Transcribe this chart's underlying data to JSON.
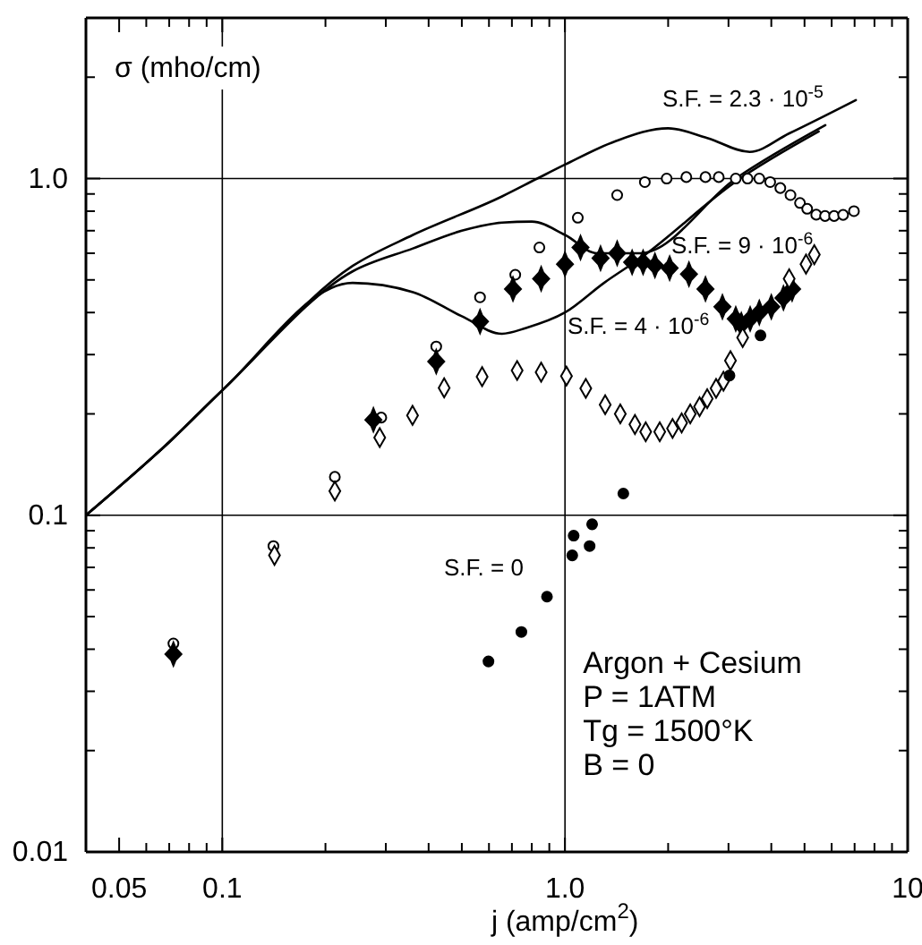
{
  "chart_data": {
    "type": "scatter",
    "xlabel": "j (amp/cm$^{2}$)",
    "ylabel": "σ (mho/cm)",
    "log": "xy",
    "grid": true,
    "xlim": [
      0.04,
      10
    ],
    "ylim": [
      0.01,
      3
    ],
    "xticks": [
      {
        "value": 0.04,
        "label": null
      },
      0.05,
      {
        "value": 0.06,
        "label": null
      },
      {
        "value": 0.07,
        "label": null
      },
      {
        "value": 0.08,
        "label": null
      },
      {
        "value": 0.09,
        "label": null
      },
      0.1,
      {
        "value": 0.2,
        "label": null
      },
      {
        "value": 0.3,
        "label": null
      },
      {
        "value": 0.4,
        "label": null
      },
      {
        "value": 0.5,
        "label": null
      },
      {
        "value": 0.6,
        "label": null
      },
      {
        "value": 0.7,
        "label": null
      },
      {
        "value": 0.8,
        "label": null
      },
      {
        "value": 0.9,
        "label": null
      },
      {
        "value": 1,
        "label": "1.0"
      },
      {
        "value": 2,
        "label": null
      },
      {
        "value": 3,
        "label": null
      },
      {
        "value": 4,
        "label": null
      },
      {
        "value": 5,
        "label": null
      },
      {
        "value": 6,
        "label": null
      },
      {
        "value": 7,
        "label": null
      },
      {
        "value": 8,
        "label": null
      },
      {
        "value": 9,
        "label": null
      },
      10
    ],
    "yticks": [
      0.01,
      {
        "value": 0.02,
        "label": null
      },
      {
        "value": 0.03,
        "label": null
      },
      {
        "value": 0.04,
        "label": null
      },
      {
        "value": 0.05,
        "label": null
      },
      {
        "value": 0.06,
        "label": null
      },
      {
        "value": 0.07,
        "label": null
      },
      {
        "value": 0.08,
        "label": null
      },
      {
        "value": 0.09,
        "label": null
      },
      0.1,
      {
        "value": 0.2,
        "label": null
      },
      {
        "value": 0.3,
        "label": null
      },
      {
        "value": 0.4,
        "label": null
      },
      {
        "value": 0.5,
        "label": null
      },
      {
        "value": 0.6,
        "label": null
      },
      {
        "value": 0.7,
        "label": null
      },
      {
        "value": 0.8,
        "label": null
      },
      {
        "value": 0.9,
        "label": null
      },
      {
        "value": 1,
        "label": "1.0"
      },
      {
        "value": 2,
        "label": null
      },
      {
        "value": 3,
        "label": null
      }
    ],
    "series": [
      {
        "type": "line",
        "color": "#000000",
        "line_style": "solid",
        "marker": "none",
        "x": [
          0.04,
          0.07,
          0.1,
          0.24,
          0.36,
          0.655,
          0.83,
          1.0,
          1.4,
          2.0,
          2.6,
          3.46,
          4.5,
          7.06
        ],
        "values": [
          0.1,
          0.165,
          0.235,
          0.55,
          0.68,
          0.885,
          1.0,
          1.1,
          1.29,
          1.41,
          1.32,
          1.2,
          1.36,
          1.71
        ]
      },
      {
        "type": "line",
        "color": "#000000",
        "line_style": "solid",
        "marker": "none",
        "x": [
          0.04,
          0.07,
          0.1,
          0.24,
          0.36,
          0.5,
          0.655,
          0.8,
          1.0,
          1.24,
          1.66,
          3.15,
          5.75
        ],
        "values": [
          0.1,
          0.165,
          0.235,
          0.53,
          0.62,
          0.7,
          0.74,
          0.745,
          0.68,
          0.6,
          0.6,
          1.0,
          1.44
        ]
      },
      {
        "type": "line",
        "color": "#000000",
        "line_style": "solid",
        "marker": "none",
        "x": [
          0.04,
          0.07,
          0.1,
          0.24,
          0.36,
          0.5,
          0.655,
          0.77,
          1.0,
          1.3,
          1.66,
          3.15,
          5.5
        ],
        "values": [
          0.1,
          0.165,
          0.235,
          0.49,
          0.46,
          0.39,
          0.346,
          0.36,
          0.4,
          0.49,
          0.58,
          0.98,
          1.38
        ]
      },
      {
        "color": "#ffffff",
        "marker": "circle",
        "x": [
          0.072,
          0.141,
          0.213,
          0.291,
          0.421,
          0.565,
          0.716,
          0.842,
          1.09,
          1.42,
          1.71,
          1.98,
          2.26,
          2.57,
          2.81,
          3.15,
          3.41,
          3.69,
          3.97,
          4.25,
          4.55,
          4.85,
          5.09,
          5.41,
          5.74,
          6.1,
          6.48,
          6.97
        ],
        "values": [
          0.0416,
          0.081,
          0.13,
          0.195,
          0.317,
          0.444,
          0.518,
          0.624,
          0.765,
          0.893,
          0.976,
          1.0,
          1.01,
          1.01,
          1.01,
          1.0,
          1.0,
          1.0,
          0.976,
          0.937,
          0.893,
          0.846,
          0.813,
          0.781,
          0.774,
          0.774,
          0.78,
          0.8
        ]
      },
      {
        "color": "#000000",
        "marker": "cross",
        "x": [
          0.072,
          0.276,
          0.421,
          0.565,
          0.705,
          0.852,
          1.0,
          1.11,
          1.27,
          1.42,
          1.57,
          1.69,
          1.83,
          2.02,
          2.3,
          2.57,
          2.88,
          3.15,
          3.27,
          3.47,
          3.69,
          4.0,
          4.34,
          4.6
        ],
        "values": [
          0.0387,
          0.192,
          0.286,
          0.376,
          0.47,
          0.504,
          0.557,
          0.624,
          0.58,
          0.6,
          0.564,
          0.564,
          0.552,
          0.542,
          0.52,
          0.47,
          0.416,
          0.383,
          0.368,
          0.383,
          0.4,
          0.416,
          0.442,
          0.47
        ]
      },
      {
        "color": "#ffffff",
        "marker": "diamond",
        "x": [
          0.142,
          0.213,
          0.288,
          0.359,
          0.444,
          0.573,
          0.725,
          0.852,
          1.01,
          1.15,
          1.31,
          1.45,
          1.6,
          1.72,
          1.89,
          2.06,
          2.19,
          2.32,
          2.47,
          2.6,
          2.76,
          2.9,
          3.04,
          3.3,
          4.51,
          5.05,
          5.34
        ],
        "values": [
          0.076,
          0.118,
          0.17,
          0.198,
          0.239,
          0.258,
          0.269,
          0.266,
          0.259,
          0.238,
          0.213,
          0.2,
          0.186,
          0.177,
          0.177,
          0.181,
          0.188,
          0.2,
          0.21,
          0.222,
          0.238,
          0.25,
          0.288,
          0.337,
          0.504,
          0.557,
          0.594
        ]
      },
      {
        "color": "#000000",
        "marker": "circle",
        "x": [
          0.598,
          0.746,
          0.886,
          1.05,
          1.06,
          1.18,
          1.2,
          1.48,
          3.02,
          3.72
        ],
        "values": [
          0.0368,
          0.045,
          0.0573,
          0.076,
          0.087,
          0.081,
          0.094,
          0.116,
          0.26,
          0.342
        ]
      }
    ],
    "annotations": [
      "S.F. = 2.3 · 10$^{-5}$",
      "S.F. = 9 · 10$^{-6}$",
      "S.F. = 4 · 10$^{-6}$",
      "S.F. = 0",
      "Argon + Cesium",
      "P = 1ATM",
      "Tg = 1500°K",
      "B = 0"
    ]
  }
}
